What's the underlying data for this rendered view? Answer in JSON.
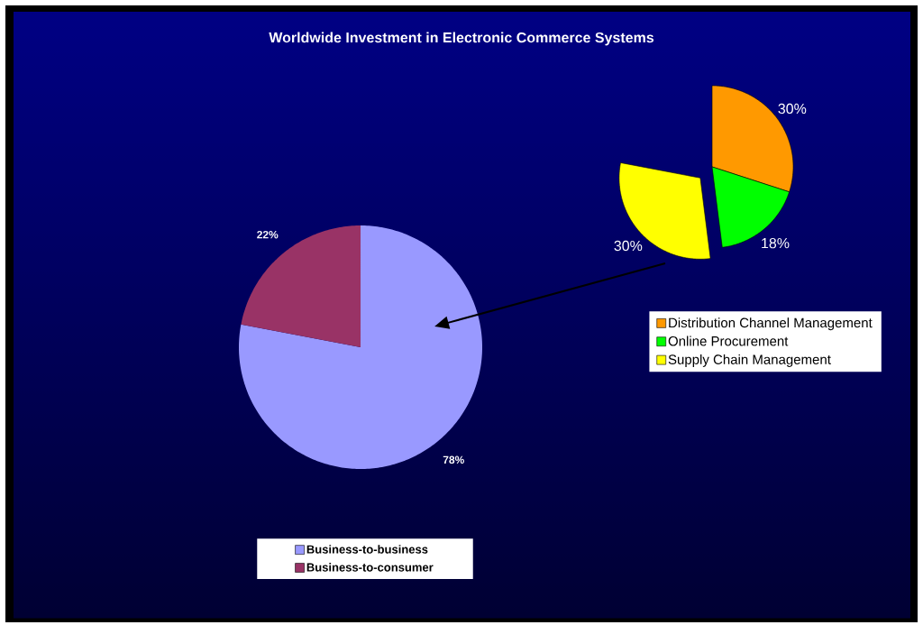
{
  "chart_data": [
    {
      "type": "pie",
      "title": "Worldwide Investment in Electronic Commerce Systems",
      "categories": [
        "Business-to-business",
        "Business-to-consumer"
      ],
      "values": [
        78,
        22
      ],
      "colors": [
        "#9999ff",
        "#993366"
      ],
      "value_labels": [
        "78%",
        "22%"
      ],
      "legend": "bottom"
    },
    {
      "type": "pie",
      "categories": [
        "Distribution Channel Management",
        "Online Procurement",
        "Supply Chain Management"
      ],
      "values": [
        30,
        18,
        30
      ],
      "colors": [
        "#ff9900",
        "#00ff00",
        "#ffff00"
      ],
      "value_labels": [
        "30%",
        "18%",
        "30%"
      ],
      "legend": "bottom right"
    }
  ]
}
